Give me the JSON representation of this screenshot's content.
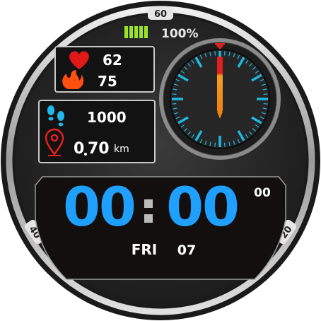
{
  "bezel": {
    "top": "60",
    "right": "20",
    "left": "40"
  },
  "battery": {
    "percent_label": "100%",
    "level": 1.0,
    "color": "#9be22a"
  },
  "health": {
    "heart_rate": "62",
    "calories": "75",
    "heart_icon": "heart-icon",
    "calorie_icon": "fire-icon"
  },
  "activity": {
    "steps": "1000",
    "distance": "0",
    "distance_decimal": "70",
    "distance_unit": "km",
    "steps_icon": "footprints-icon",
    "distance_icon": "location-pin-icon"
  },
  "time": {
    "hours": "00",
    "minutes": "00",
    "separator": ":",
    "seconds": "00"
  },
  "date": {
    "weekday": "FRI",
    "day": "07"
  },
  "colors": {
    "accent": "#1fa0ff",
    "tick": "#1fb8e0",
    "needle": "#f0a020",
    "marker": "#e02020"
  }
}
